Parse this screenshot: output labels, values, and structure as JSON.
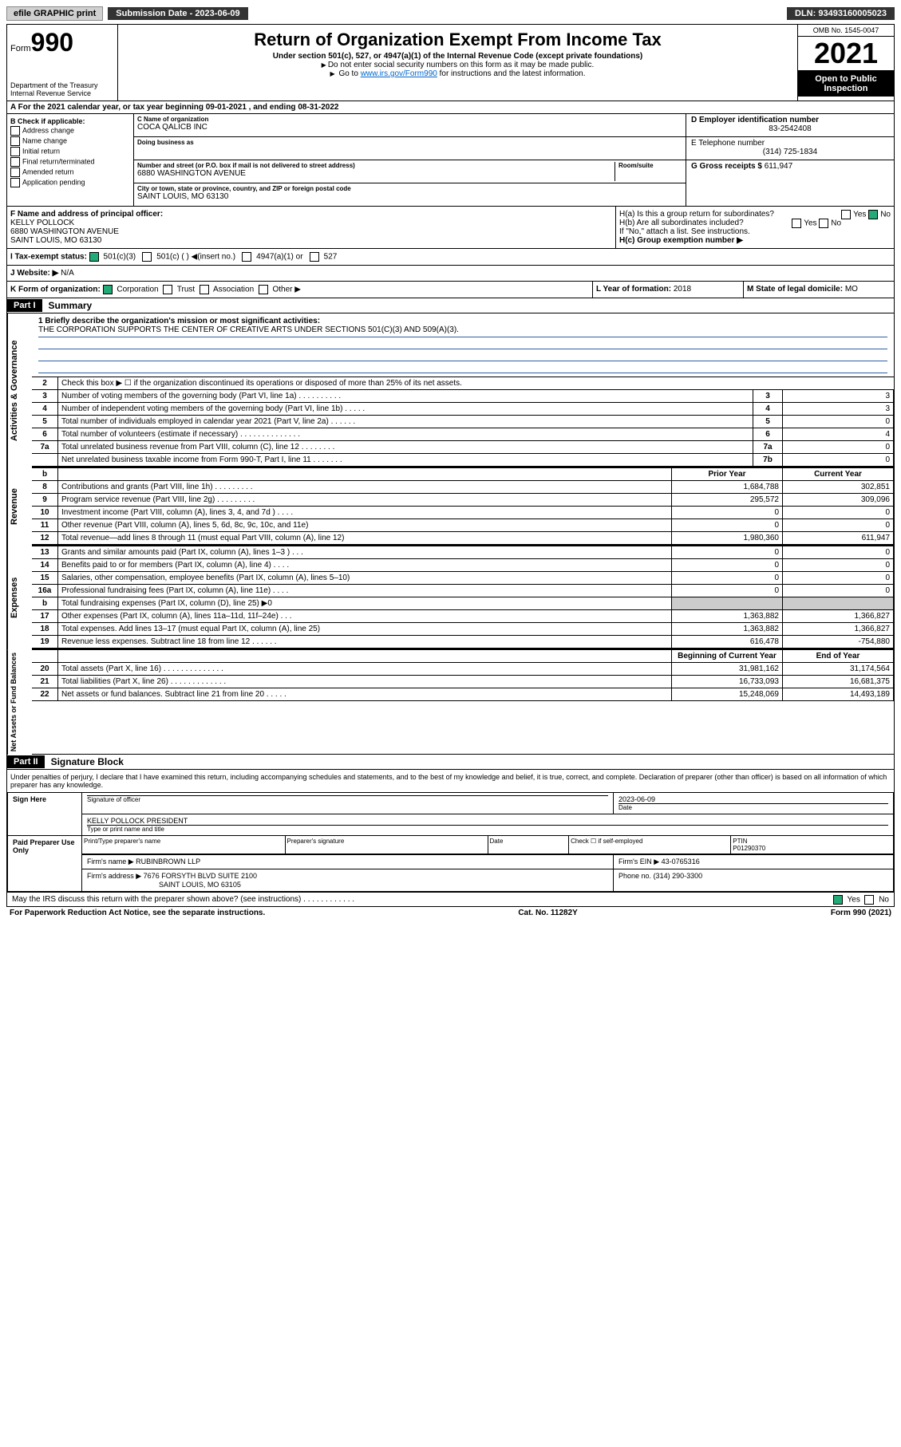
{
  "topbar": {
    "efile": "efile GRAPHIC print",
    "submission_label": "Submission Date - 2023-06-09",
    "dln": "DLN: 93493160005023"
  },
  "header": {
    "form_word": "Form",
    "form_num": "990",
    "dept": "Department of the Treasury",
    "irs": "Internal Revenue Service",
    "title": "Return of Organization Exempt From Income Tax",
    "sub": "Under section 501(c), 527, or 4947(a)(1) of the Internal Revenue Code (except private foundations)",
    "note1": "Do not enter social security numbers on this form as it may be made public.",
    "note2_pre": "Go to ",
    "note2_link": "www.irs.gov/Form990",
    "note2_post": " for instructions and the latest information.",
    "omb": "OMB No. 1545-0047",
    "year": "2021",
    "open": "Open to Public Inspection"
  },
  "row_a": "A For the 2021 calendar year, or tax year beginning 09-01-2021   , and ending 08-31-2022",
  "col_b": {
    "title": "B Check if applicable:",
    "items": [
      "Address change",
      "Name change",
      "Initial return",
      "Final return/terminated",
      "Amended return",
      "Application pending"
    ]
  },
  "col_c": {
    "name_lbl": "C Name of organization",
    "name": "COCA QALICB INC",
    "dba_lbl": "Doing business as",
    "dba": "",
    "addr_lbl": "Number and street (or P.O. box if mail is not delivered to street address)",
    "room_lbl": "Room/suite",
    "addr": "6880 WASHINGTON AVENUE",
    "city_lbl": "City or town, state or province, country, and ZIP or foreign postal code",
    "city": "SAINT LOUIS, MO  63130"
  },
  "col_de": {
    "d_lbl": "D Employer identification number",
    "d": "83-2542408",
    "e_lbl": "E Telephone number",
    "e": "(314) 725-1834",
    "g_lbl": "G Gross receipts $",
    "g": "611,947"
  },
  "fh": {
    "f_lbl": "F Name and address of principal officer:",
    "f_name": "KELLY POLLOCK",
    "f_addr1": "6880 WASHINGTON AVENUE",
    "f_addr2": "SAINT LOUIS, MO  63130",
    "ha": "H(a)  Is this a group return for subordinates?",
    "hb": "H(b)  Are all subordinates included?",
    "hb_note": "If \"No,\" attach a list. See instructions.",
    "hc": "H(c)  Group exemption number ▶",
    "yes": "Yes",
    "no": "No"
  },
  "row_i": {
    "label": "I   Tax-exempt status:",
    "opts": [
      "501(c)(3)",
      "501(c) (   ) ◀(insert no.)",
      "4947(a)(1) or",
      "527"
    ]
  },
  "row_j": {
    "label": "J   Website: ▶",
    "val": "N/A"
  },
  "row_k": {
    "k": "K Form of organization:",
    "opts": [
      "Corporation",
      "Trust",
      "Association",
      "Other ▶"
    ],
    "l_lbl": "L Year of formation:",
    "l": "2018",
    "m_lbl": "M State of legal domicile:",
    "m": "MO"
  },
  "parts": {
    "p1": "Part I",
    "p1_title": "Summary",
    "p2": "Part II",
    "p2_title": "Signature Block"
  },
  "sides": {
    "gov": "Activities & Governance",
    "rev": "Revenue",
    "exp": "Expenses",
    "net": "Net Assets or Fund Balances"
  },
  "mission": {
    "lbl": "1   Briefly describe the organization's mission or most significant activities:",
    "text": "THE CORPORATION SUPPORTS THE CENTER OF CREATIVE ARTS UNDER SECTIONS 501(C)(3) AND 509(A)(3)."
  },
  "gov_lines": {
    "l2": "Check this box ▶ ☐  if the organization discontinued its operations or disposed of more than 25% of its net assets.",
    "l3": "Number of voting members of the governing body (Part VI, line 1a)  .   .   .   .   .   .   .   .   .   .",
    "l4": "Number of independent voting members of the governing body (Part VI, line 1b)  .   .   .   .   .",
    "l5": "Total number of individuals employed in calendar year 2021 (Part V, line 2a)  .   .   .   .   .   .",
    "l6": "Total number of volunteers (estimate if necessary)  .   .   .   .   .   .   .   .   .   .   .   .   .   .",
    "l7a": "Total unrelated business revenue from Part VIII, column (C), line 12  .   .   .   .   .   .   .   .",
    "l7b": "Net unrelated business taxable income from Form 990-T, Part I, line 11  .   .   .   .   .   .   .",
    "v3": "3",
    "v4": "3",
    "v5": "0",
    "v6": "4",
    "v7a": "0",
    "v7b": "0"
  },
  "cols": {
    "prior": "Prior Year",
    "current": "Current Year",
    "boy": "Beginning of Current Year",
    "eoy": "End of Year"
  },
  "rev": [
    {
      "n": "8",
      "d": "Contributions and grants (Part VIII, line 1h)  .   .   .   .   .   .   .   .   .",
      "p": "1,684,788",
      "c": "302,851"
    },
    {
      "n": "9",
      "d": "Program service revenue (Part VIII, line 2g)  .   .   .   .   .   .   .   .   .",
      "p": "295,572",
      "c": "309,096"
    },
    {
      "n": "10",
      "d": "Investment income (Part VIII, column (A), lines 3, 4, and 7d )  .   .   .   .",
      "p": "0",
      "c": "0"
    },
    {
      "n": "11",
      "d": "Other revenue (Part VIII, column (A), lines 5, 6d, 8c, 9c, 10c, and 11e)",
      "p": "0",
      "c": "0"
    },
    {
      "n": "12",
      "d": "Total revenue—add lines 8 through 11 (must equal Part VIII, column (A), line 12)",
      "p": "1,980,360",
      "c": "611,947"
    }
  ],
  "exp": [
    {
      "n": "13",
      "d": "Grants and similar amounts paid (Part IX, column (A), lines 1–3 )  .   .   .",
      "p": "0",
      "c": "0"
    },
    {
      "n": "14",
      "d": "Benefits paid to or for members (Part IX, column (A), line 4)  .   .   .   .",
      "p": "0",
      "c": "0"
    },
    {
      "n": "15",
      "d": "Salaries, other compensation, employee benefits (Part IX, column (A), lines 5–10)",
      "p": "0",
      "c": "0"
    },
    {
      "n": "16a",
      "d": "Professional fundraising fees (Part IX, column (A), line 11e)  .   .   .   .",
      "p": "0",
      "c": "0"
    },
    {
      "n": "b",
      "d": "Total fundraising expenses (Part IX, column (D), line 25) ▶0",
      "p": "",
      "c": "",
      "shade": true
    },
    {
      "n": "17",
      "d": "Other expenses (Part IX, column (A), lines 11a–11d, 11f–24e)  .   .   .",
      "p": "1,363,882",
      "c": "1,366,827"
    },
    {
      "n": "18",
      "d": "Total expenses. Add lines 13–17 (must equal Part IX, column (A), line 25)",
      "p": "1,363,882",
      "c": "1,366,827"
    },
    {
      "n": "19",
      "d": "Revenue less expenses. Subtract line 18 from line 12  .   .   .   .   .   .",
      "p": "616,478",
      "c": "-754,880"
    }
  ],
  "net": [
    {
      "n": "20",
      "d": "Total assets (Part X, line 16)  .   .   .   .   .   .   .   .   .   .   .   .   .   .",
      "p": "31,981,162",
      "c": "31,174,564"
    },
    {
      "n": "21",
      "d": "Total liabilities (Part X, line 26)  .   .   .   .   .   .   .   .   .   .   .   .   .",
      "p": "16,733,093",
      "c": "16,681,375"
    },
    {
      "n": "22",
      "d": "Net assets or fund balances. Subtract line 21 from line 20  .   .   .   .   .",
      "p": "15,248,069",
      "c": "14,493,189"
    }
  ],
  "sig": {
    "penalty": "Under penalties of perjury, I declare that I have examined this return, including accompanying schedules and statements, and to the best of my knowledge and belief, it is true, correct, and complete. Declaration of preparer (other than officer) is based on all information of which preparer has any knowledge.",
    "sign_here": "Sign Here",
    "sig_officer": "Signature of officer",
    "date": "2023-06-09",
    "date_lbl": "Date",
    "name_title": "KELLY POLLOCK  PRESIDENT",
    "name_title_lbl": "Type or print name and title",
    "paid": "Paid Preparer Use Only",
    "prep_name_lbl": "Print/Type preparer's name",
    "prep_sig_lbl": "Preparer's signature",
    "prep_date_lbl": "Date",
    "check_self": "Check ☐ if self-employed",
    "ptin_lbl": "PTIN",
    "ptin": "P01290370",
    "firm_name_lbl": "Firm's name   ▶",
    "firm_name": "RUBINBROWN LLP",
    "firm_ein_lbl": "Firm's EIN ▶",
    "firm_ein": "43-0765316",
    "firm_addr_lbl": "Firm's address ▶",
    "firm_addr": "7676 FORSYTH BLVD SUITE 2100",
    "firm_city": "SAINT LOUIS, MO  63105",
    "phone_lbl": "Phone no.",
    "phone": "(314) 290-3300",
    "discuss": "May the IRS discuss this return with the preparer shown above? (see instructions)  .   .   .   .   .   .   .   .   .   .   .   ."
  },
  "footer": {
    "left": "For Paperwork Reduction Act Notice, see the separate instructions.",
    "mid": "Cat. No. 11282Y",
    "right": "Form 990 (2021)"
  },
  "colors": {
    "link": "#0066cc",
    "check_green": "#2a7a3a",
    "line_blue": "#3060a0"
  }
}
